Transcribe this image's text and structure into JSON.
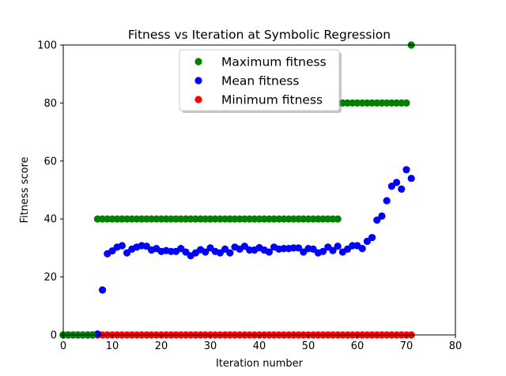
{
  "chart_data": {
    "type": "scatter",
    "title": "Fitness vs Iteration at Symbolic Regression",
    "xlabel": "Iteration number",
    "ylabel": "Fitness score",
    "xlim": [
      0,
      80
    ],
    "ylim": [
      0,
      100
    ],
    "xticks": [
      0,
      10,
      20,
      30,
      40,
      50,
      60,
      70,
      80
    ],
    "yticks": [
      0,
      20,
      40,
      60,
      80,
      100
    ],
    "grid": false,
    "legend_position": "top-center",
    "series": [
      {
        "name": "Maximum fitness",
        "color": "#008000",
        "points": [
          [
            0,
            0
          ],
          [
            1,
            0
          ],
          [
            2,
            0
          ],
          [
            3,
            0
          ],
          [
            4,
            0
          ],
          [
            5,
            0
          ],
          [
            6,
            0
          ],
          [
            7,
            40
          ],
          [
            8,
            40
          ],
          [
            9,
            40
          ],
          [
            10,
            40
          ],
          [
            11,
            40
          ],
          [
            12,
            40
          ],
          [
            13,
            40
          ],
          [
            14,
            40
          ],
          [
            15,
            40
          ],
          [
            16,
            40
          ],
          [
            17,
            40
          ],
          [
            18,
            40
          ],
          [
            19,
            40
          ],
          [
            20,
            40
          ],
          [
            21,
            40
          ],
          [
            22,
            40
          ],
          [
            23,
            40
          ],
          [
            24,
            40
          ],
          [
            25,
            40
          ],
          [
            26,
            40
          ],
          [
            27,
            40
          ],
          [
            28,
            40
          ],
          [
            29,
            40
          ],
          [
            30,
            40
          ],
          [
            31,
            40
          ],
          [
            32,
            40
          ],
          [
            33,
            40
          ],
          [
            34,
            40
          ],
          [
            35,
            40
          ],
          [
            36,
            40
          ],
          [
            37,
            40
          ],
          [
            38,
            40
          ],
          [
            39,
            40
          ],
          [
            40,
            40
          ],
          [
            41,
            40
          ],
          [
            42,
            40
          ],
          [
            43,
            40
          ],
          [
            44,
            40
          ],
          [
            45,
            40
          ],
          [
            46,
            40
          ],
          [
            47,
            40
          ],
          [
            48,
            40
          ],
          [
            49,
            40
          ],
          [
            50,
            40
          ],
          [
            51,
            40
          ],
          [
            52,
            40
          ],
          [
            53,
            40
          ],
          [
            54,
            40
          ],
          [
            55,
            40
          ],
          [
            56,
            40
          ],
          [
            47,
            80
          ],
          [
            48,
            80
          ],
          [
            49,
            80
          ],
          [
            50,
            80
          ],
          [
            51,
            80
          ],
          [
            52,
            80
          ],
          [
            53,
            80
          ],
          [
            54,
            80
          ],
          [
            55,
            80
          ],
          [
            56,
            80
          ],
          [
            57,
            80
          ],
          [
            58,
            80
          ],
          [
            59,
            80
          ],
          [
            60,
            80
          ],
          [
            61,
            80
          ],
          [
            62,
            80
          ],
          [
            63,
            80
          ],
          [
            64,
            80
          ],
          [
            65,
            80
          ],
          [
            66,
            80
          ],
          [
            67,
            80
          ],
          [
            68,
            80
          ],
          [
            69,
            80
          ],
          [
            70,
            80
          ],
          [
            71,
            100
          ]
        ]
      },
      {
        "name": "Mean fitness",
        "color": "#0000ff",
        "points": [
          [
            0,
            0
          ],
          [
            1,
            0
          ],
          [
            2,
            0
          ],
          [
            3,
            0
          ],
          [
            4,
            0
          ],
          [
            5,
            0
          ],
          [
            6,
            0
          ],
          [
            7,
            0.3
          ],
          [
            8,
            15.5
          ],
          [
            9,
            28
          ],
          [
            10,
            29
          ],
          [
            11,
            30.3
          ],
          [
            12,
            30.8
          ],
          [
            13,
            28.3
          ],
          [
            14,
            29.6
          ],
          [
            15,
            30.3
          ],
          [
            16,
            30.8
          ],
          [
            17,
            30.6
          ],
          [
            18,
            29.3
          ],
          [
            19,
            29.8
          ],
          [
            20,
            28.8
          ],
          [
            21,
            29.1
          ],
          [
            22,
            28.8
          ],
          [
            23,
            28.8
          ],
          [
            24,
            29.8
          ],
          [
            25,
            28.6
          ],
          [
            26,
            27.3
          ],
          [
            27,
            28.3
          ],
          [
            28,
            29.4
          ],
          [
            29,
            28.6
          ],
          [
            30,
            30
          ],
          [
            31,
            28.8
          ],
          [
            32,
            28.3
          ],
          [
            33,
            29.6
          ],
          [
            34,
            28.3
          ],
          [
            35,
            30.3
          ],
          [
            36,
            29.6
          ],
          [
            37,
            30.6
          ],
          [
            38,
            29.3
          ],
          [
            39,
            29.3
          ],
          [
            40,
            30.1
          ],
          [
            41,
            29.3
          ],
          [
            42,
            28.6
          ],
          [
            43,
            30.3
          ],
          [
            44,
            29.6
          ],
          [
            45,
            29.8
          ],
          [
            46,
            29.8
          ],
          [
            47,
            30
          ],
          [
            48,
            30
          ],
          [
            49,
            28.6
          ],
          [
            50,
            29.8
          ],
          [
            51,
            29.6
          ],
          [
            52,
            28.3
          ],
          [
            53,
            28.8
          ],
          [
            54,
            30.3
          ],
          [
            55,
            29.1
          ],
          [
            56,
            30.6
          ],
          [
            57,
            28.6
          ],
          [
            58,
            29.6
          ],
          [
            59,
            30.8
          ],
          [
            60,
            30.8
          ],
          [
            61,
            29.8
          ],
          [
            62,
            32.3
          ],
          [
            63,
            33.6
          ],
          [
            64,
            39.6
          ],
          [
            65,
            41
          ],
          [
            66,
            46.3
          ],
          [
            67,
            51.3
          ],
          [
            68,
            52.6
          ],
          [
            69,
            50.3
          ],
          [
            70,
            57
          ],
          [
            71,
            54
          ]
        ]
      },
      {
        "name": "Minimum fitness",
        "color": "#ff0000",
        "points": [
          [
            0,
            0
          ],
          [
            1,
            0
          ],
          [
            2,
            0
          ],
          [
            3,
            0
          ],
          [
            4,
            0
          ],
          [
            5,
            0
          ],
          [
            6,
            0
          ],
          [
            7,
            0
          ],
          [
            8,
            0
          ],
          [
            9,
            0
          ],
          [
            10,
            0
          ],
          [
            11,
            0
          ],
          [
            12,
            0
          ],
          [
            13,
            0
          ],
          [
            14,
            0
          ],
          [
            15,
            0
          ],
          [
            16,
            0
          ],
          [
            17,
            0
          ],
          [
            18,
            0
          ],
          [
            19,
            0
          ],
          [
            20,
            0
          ],
          [
            21,
            0
          ],
          [
            22,
            0
          ],
          [
            23,
            0
          ],
          [
            24,
            0
          ],
          [
            25,
            0
          ],
          [
            26,
            0
          ],
          [
            27,
            0
          ],
          [
            28,
            0
          ],
          [
            29,
            0
          ],
          [
            30,
            0
          ],
          [
            31,
            0
          ],
          [
            32,
            0
          ],
          [
            33,
            0
          ],
          [
            34,
            0
          ],
          [
            35,
            0
          ],
          [
            36,
            0
          ],
          [
            37,
            0
          ],
          [
            38,
            0
          ],
          [
            39,
            0
          ],
          [
            40,
            0
          ],
          [
            41,
            0
          ],
          [
            42,
            0
          ],
          [
            43,
            0
          ],
          [
            44,
            0
          ],
          [
            45,
            0
          ],
          [
            46,
            0
          ],
          [
            47,
            0
          ],
          [
            48,
            0
          ],
          [
            49,
            0
          ],
          [
            50,
            0
          ],
          [
            51,
            0
          ],
          [
            52,
            0
          ],
          [
            53,
            0
          ],
          [
            54,
            0
          ],
          [
            55,
            0
          ],
          [
            56,
            0
          ],
          [
            57,
            0
          ],
          [
            58,
            0
          ],
          [
            59,
            0
          ],
          [
            60,
            0
          ],
          [
            61,
            0
          ],
          [
            62,
            0
          ],
          [
            63,
            0
          ],
          [
            64,
            0
          ],
          [
            65,
            0
          ],
          [
            66,
            0
          ],
          [
            67,
            0
          ],
          [
            68,
            0
          ],
          [
            69,
            0
          ],
          [
            70,
            0
          ],
          [
            71,
            0
          ]
        ]
      }
    ]
  }
}
